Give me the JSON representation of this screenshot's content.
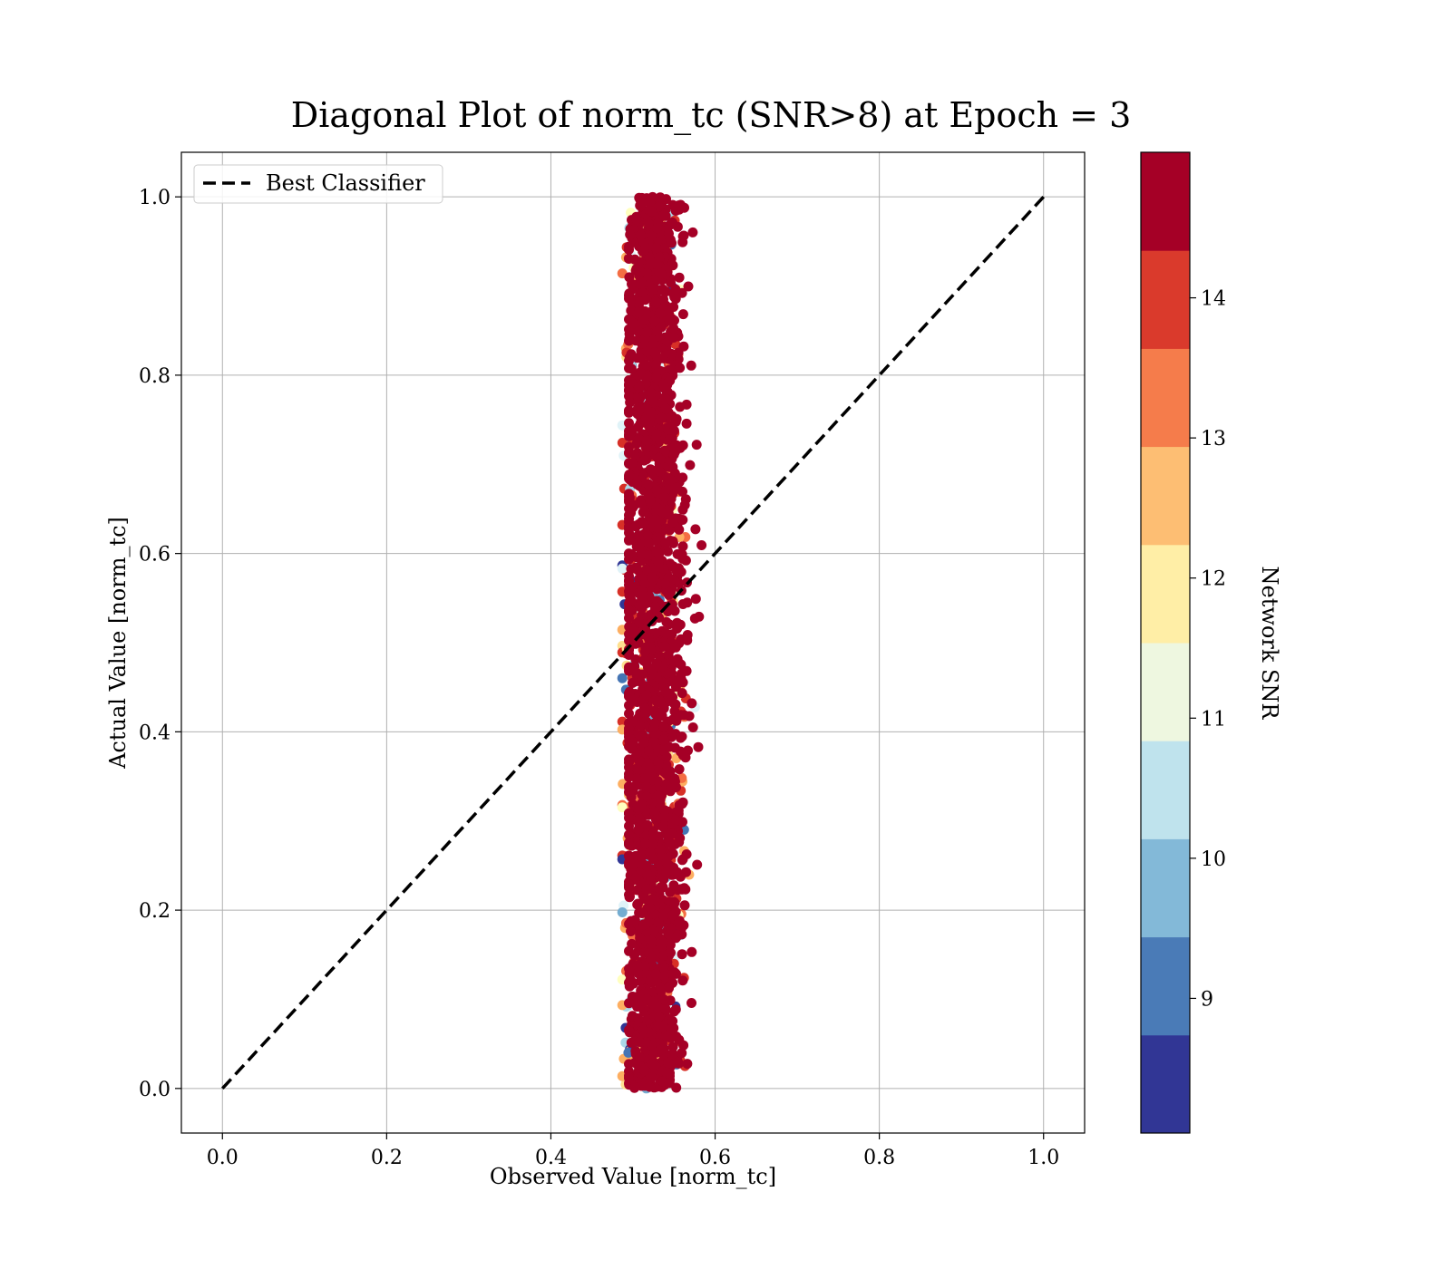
{
  "chart_data": {
    "type": "scatter",
    "title": "Diagonal Plot of norm_tc (SNR>8) at Epoch = 3",
    "xlabel": "Observed Value [norm_tc]",
    "ylabel": "Actual Value [norm_tc]",
    "xlim": [
      -0.05,
      1.05
    ],
    "ylim": [
      -0.05,
      1.05
    ],
    "xticks": [
      "0.0",
      "0.2",
      "0.4",
      "0.6",
      "0.8",
      "1.0"
    ],
    "yticks": [
      "0.0",
      "0.2",
      "0.4",
      "0.6",
      "0.8",
      "1.0"
    ],
    "grid": true,
    "legend": {
      "position": "top-left",
      "entries": [
        "Best Classifier"
      ]
    },
    "reference_line": {
      "name": "Best Classifier",
      "style": "dashed",
      "color": "#000000",
      "x": [
        0,
        1
      ],
      "y": [
        0,
        1
      ]
    },
    "scatter": {
      "x_center": 0.525,
      "x_spread": 0.05,
      "y_range": [
        0,
        1
      ],
      "note": "dense vertical band of points colored by Network SNR"
    },
    "colorbar": {
      "label": "Network SNR",
      "range": [
        8,
        15
      ],
      "ticks": [
        "9",
        "10",
        "11",
        "12",
        "13",
        "14"
      ],
      "tick_values": [
        9,
        10,
        11,
        12,
        13,
        14
      ],
      "colors": [
        "#313695",
        "#4575b4",
        "#74add1",
        "#abd9e9",
        "#e0f3f8",
        "#ffffbf",
        "#fee090",
        "#fdae61",
        "#f46d43",
        "#d73027",
        "#a50026"
      ]
    }
  }
}
